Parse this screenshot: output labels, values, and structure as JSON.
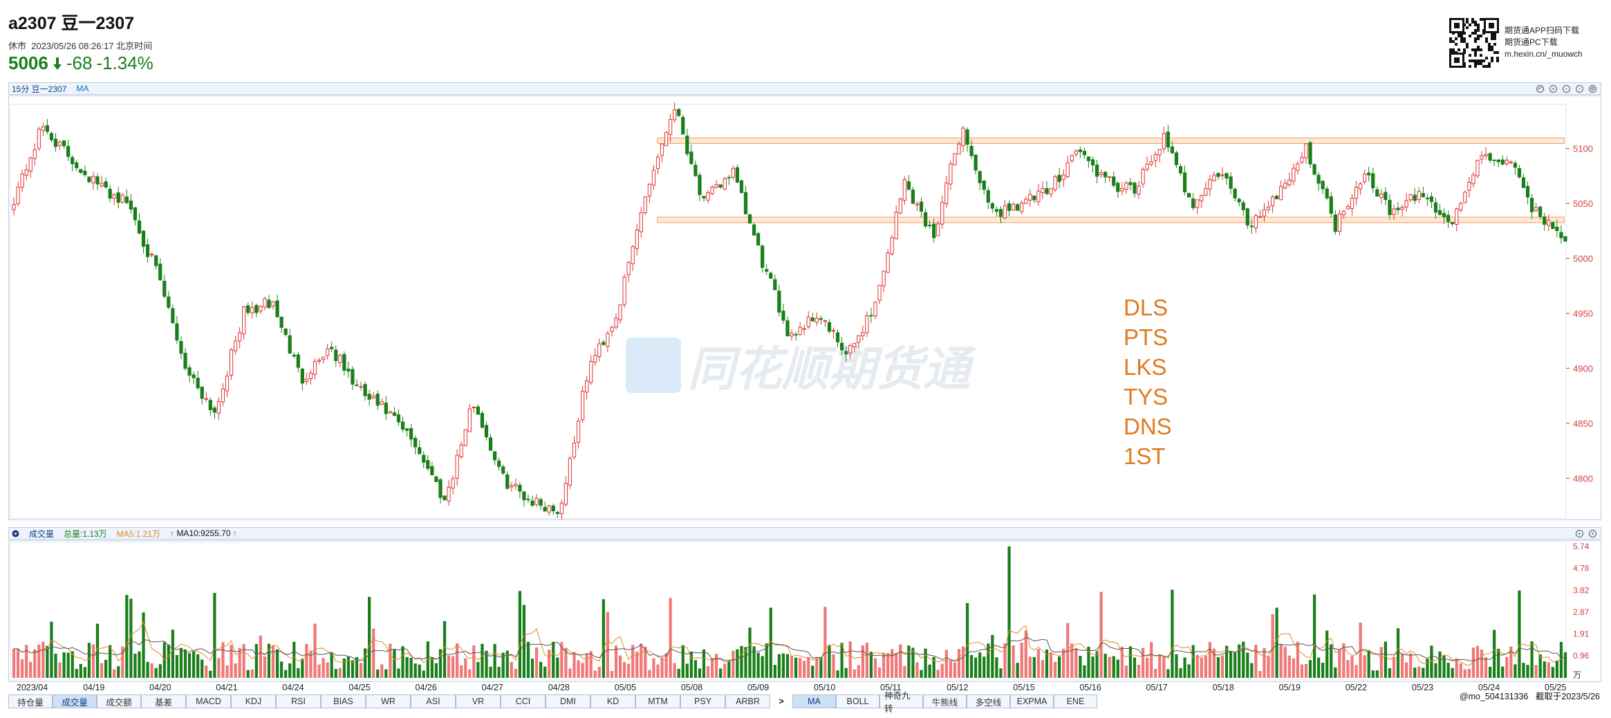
{
  "header": {
    "title": "a2307 豆一2307",
    "status": "休市",
    "datetime": "2023/05/26 08:26:17 北京时间",
    "price": "5006",
    "change": "-68",
    "change_pct": "-1.34%"
  },
  "promo": {
    "line1": "期货通APP扫码下载",
    "line2": "期货通PC下载",
    "line3": "m.hexin.cn/_muowch"
  },
  "main_bar": {
    "label1": "15分 豆一2307",
    "label2": "MA"
  },
  "price_axis": {
    "ticks": [
      "5100",
      "5050",
      "5000",
      "4950",
      "4900",
      "4850",
      "4800"
    ]
  },
  "volume_bar": {
    "label": "成交量",
    "total": "总量:1.13万",
    "ma5": "MA5:1.21万",
    "ma10": "MA10:9255.70"
  },
  "volume_axis": {
    "ticks": [
      "5.74",
      "4.78",
      "3.82",
      "2.87",
      "1.91",
      "0.96"
    ],
    "unit": "万"
  },
  "date_axis": [
    "2023/04",
    "04/19",
    "04/20",
    "04/21",
    "04/24",
    "04/25",
    "04/26",
    "04/27",
    "04/28",
    "05/05",
    "05/08",
    "05/09",
    "05/10",
    "05/11",
    "05/12",
    "05/15",
    "05/16",
    "05/17",
    "05/18",
    "05/19",
    "05/22",
    "05/23",
    "05/24",
    "05/25"
  ],
  "notes": [
    "DLS",
    "PTS",
    "LKS",
    "TYS",
    "DNS",
    "1ST"
  ],
  "watermark": "同花顺期货通",
  "footer": {
    "user": "@mo_504131336",
    "capture": "截取于2023/5/26"
  },
  "tabs_left": [
    "持仓量",
    "成交量",
    "成交额",
    "基差",
    "MACD",
    "KDJ",
    "RSI",
    "BIAS",
    "WR",
    "ASI",
    "VR",
    "CCI",
    "DMI",
    "KD",
    "MTM",
    "PSY",
    "ARBR"
  ],
  "tab_more": ">",
  "tabs_right": [
    "MA",
    "BOLL",
    "神奇九转",
    "牛熊线",
    "多空线",
    "EXPMA",
    "ENE"
  ],
  "colors": {
    "up": "#e03030",
    "down": "#1a7f1a",
    "ma": "#e08a2a",
    "box": "#f2a060"
  },
  "chart_data": {
    "type": "candlestick",
    "interval": "15分",
    "ylim": [
      4765,
      5140
    ],
    "anchors": [
      5055,
      5120,
      5090,
      5065,
      5050,
      4985,
      4900,
      4860,
      4950,
      4960,
      4890,
      4920,
      4880,
      4860,
      4830,
      4780,
      4870,
      4800,
      4780,
      4770,
      4900,
      4950,
      5060,
      5140,
      5050,
      5080,
      5000,
      4930,
      4950,
      4910,
      4960,
      5070,
      5020,
      5120,
      5040,
      5050,
      5060,
      5100,
      5070,
      5060,
      5110,
      5050,
      5080,
      5030,
      5060,
      5100,
      5030,
      5080,
      5040,
      5060,
      5030,
      5090,
      5090,
      5040,
      5020
    ],
    "box": {
      "top": 5107,
      "bottom": 5035
    }
  }
}
